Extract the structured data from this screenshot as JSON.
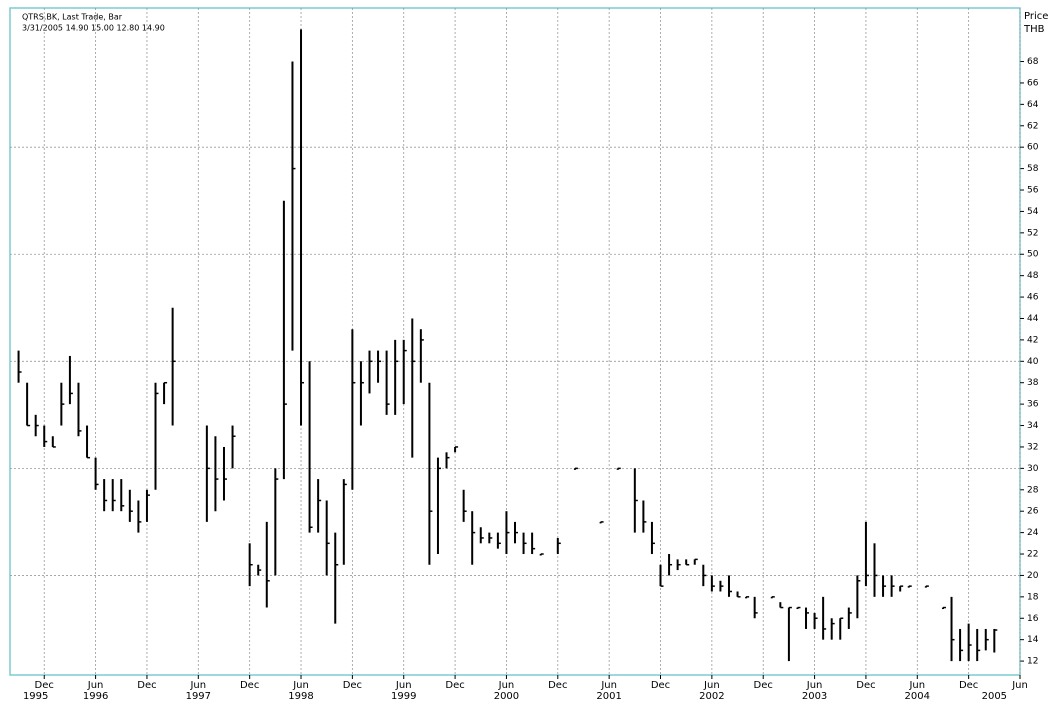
{
  "chart_data": {
    "type": "ohlc",
    "title": "QTRS.BK, Last Trade, Bar",
    "subtitle": "3/31/2005 14.90 15.00 12.80 14.90",
    "y_axis_label": "Price",
    "y_axis_unit": "THB",
    "color": "#000000",
    "grid": true,
    "xlim": [
      "1995-08",
      "2005-06"
    ],
    "ylim": [
      10.7,
      73
    ],
    "yticks": [
      12,
      14,
      16,
      18,
      20,
      22,
      24,
      26,
      28,
      30,
      32,
      34,
      36,
      38,
      40,
      42,
      44,
      46,
      48,
      50,
      52,
      54,
      56,
      58,
      60,
      62,
      64,
      66,
      68
    ],
    "xticks": [
      {
        "value": "1995-12",
        "label": "Dec"
      },
      {
        "value": "1996-06",
        "label": "Jun"
      },
      {
        "value": "1996-12",
        "label": "Dec"
      },
      {
        "value": "1997-06",
        "label": "Jun"
      },
      {
        "value": "1997-12",
        "label": "Dec"
      },
      {
        "value": "1998-06",
        "label": "Jun"
      },
      {
        "value": "1998-12",
        "label": "Dec"
      },
      {
        "value": "1999-06",
        "label": "Jun"
      },
      {
        "value": "1999-12",
        "label": "Dec"
      },
      {
        "value": "2000-06",
        "label": "Jun"
      },
      {
        "value": "2000-12",
        "label": "Dec"
      },
      {
        "value": "2001-06",
        "label": "Jun"
      },
      {
        "value": "2001-12",
        "label": "Dec"
      },
      {
        "value": "2002-06",
        "label": "Jun"
      },
      {
        "value": "2002-12",
        "label": "Dec"
      },
      {
        "value": "2003-06",
        "label": "Jun"
      },
      {
        "value": "2003-12",
        "label": "Dec"
      },
      {
        "value": "2004-06",
        "label": "Jun"
      },
      {
        "value": "2004-12",
        "label": "Dec"
      },
      {
        "value": "2005-06",
        "label": "Jun"
      }
    ],
    "year_labels": [
      {
        "value": "1995-11",
        "label": "1995"
      },
      {
        "value": "1996-06",
        "label": "1996"
      },
      {
        "value": "1997-06",
        "label": "1997"
      },
      {
        "value": "1998-06",
        "label": "1998"
      },
      {
        "value": "1999-06",
        "label": "1999"
      },
      {
        "value": "2000-06",
        "label": "2000"
      },
      {
        "value": "2001-06",
        "label": "2001"
      },
      {
        "value": "2002-06",
        "label": "2002"
      },
      {
        "value": "2003-06",
        "label": "2003"
      },
      {
        "value": "2004-06",
        "label": "2004"
      },
      {
        "value": "2005-03",
        "label": "2005"
      }
    ],
    "x": [
      "1995-09",
      "1995-10",
      "1995-11",
      "1995-12",
      "1996-01",
      "1996-02",
      "1996-03",
      "1996-04",
      "1996-05",
      "1996-06",
      "1996-07",
      "1996-08",
      "1996-09",
      "1996-10",
      "1996-11",
      "1996-12",
      "1997-01",
      "1997-02",
      "1997-03",
      "1997-07",
      "1997-08",
      "1997-09",
      "1997-10",
      "1997-12",
      "1998-01",
      "1998-02",
      "1998-03",
      "1998-04",
      "1998-05",
      "1998-06",
      "1998-07",
      "1998-08",
      "1998-09",
      "1998-10",
      "1998-11",
      "1998-12",
      "1999-01",
      "1999-02",
      "1999-03",
      "1999-04",
      "1999-05",
      "1999-06",
      "1999-07",
      "1999-08",
      "1999-09",
      "1999-10",
      "1999-11",
      "1999-12",
      "2000-01",
      "2000-02",
      "2000-03",
      "2000-04",
      "2000-05",
      "2000-06",
      "2000-07",
      "2000-08",
      "2000-09",
      "2000-10",
      "2000-12",
      "2001-02",
      "2001-05",
      "2001-07",
      "2001-09",
      "2001-10",
      "2001-11",
      "2001-12",
      "2002-01",
      "2002-02",
      "2002-03",
      "2002-04",
      "2002-05",
      "2002-06",
      "2002-07",
      "2002-08",
      "2002-09",
      "2002-10",
      "2002-11",
      "2003-01",
      "2003-02",
      "2003-03",
      "2003-04",
      "2003-05",
      "2003-06",
      "2003-07",
      "2003-08",
      "2003-09",
      "2003-10",
      "2003-11",
      "2003-12",
      "2004-01",
      "2004-02",
      "2004-03",
      "2004-04",
      "2004-05",
      "2004-07",
      "2004-09",
      "2004-10",
      "2004-11",
      "2004-12",
      "2005-01",
      "2005-02",
      "2005-03"
    ],
    "high": [
      41,
      38,
      35,
      34,
      33,
      38,
      40.5,
      38,
      34,
      31,
      29,
      29,
      29,
      28,
      27,
      28,
      38,
      38,
      45,
      34,
      33,
      32,
      34,
      23,
      21,
      25,
      30,
      55,
      68,
      71,
      40,
      29,
      27,
      24,
      29,
      43,
      40,
      41,
      41,
      41,
      42,
      42,
      44,
      43,
      38,
      31,
      31.5,
      32,
      28,
      26,
      24.5,
      24,
      24,
      26,
      25,
      24,
      24,
      22,
      23.5,
      30,
      25,
      30,
      30,
      27,
      25,
      21,
      22,
      21.5,
      21.5,
      21.5,
      21,
      20,
      19.5,
      20,
      18.5,
      18,
      18,
      18,
      17.5,
      17,
      17,
      17,
      16.5,
      18,
      16,
      16,
      17,
      20,
      25,
      23,
      20,
      20,
      19,
      19,
      19,
      17,
      18,
      15,
      15.5,
      15,
      15,
      15
    ],
    "low": [
      38,
      34,
      33,
      32,
      32,
      34,
      36,
      33,
      31,
      28,
      26,
      26,
      26,
      25,
      24,
      25,
      28,
      36,
      34,
      25,
      26,
      27,
      30,
      19,
      20,
      17,
      20,
      29,
      41,
      34,
      24,
      24,
      20,
      15.5,
      21,
      28,
      34,
      37,
      38,
      35,
      35,
      36,
      31,
      38,
      21,
      22,
      30,
      31.5,
      25,
      21,
      23,
      23,
      22.5,
      22,
      23,
      22,
      22,
      22,
      22,
      30,
      25,
      30,
      24,
      24,
      22,
      19,
      20,
      20.5,
      21,
      21,
      19,
      18.5,
      18.5,
      18,
      18,
      18,
      16,
      18,
      17,
      12,
      17,
      15,
      15,
      14,
      14,
      14,
      15,
      16,
      19,
      18,
      18,
      18,
      18.5,
      19,
      19,
      17,
      12,
      12,
      12,
      12,
      13,
      12.8
    ],
    "close": [
      39,
      34,
      34,
      32.5,
      32,
      36,
      37,
      33.5,
      31,
      28.5,
      27,
      27,
      26.5,
      26,
      25,
      27.5,
      37,
      38,
      40,
      30,
      29,
      29,
      33,
      21,
      20.5,
      19.5,
      29,
      36,
      58,
      38,
      24.5,
      27,
      23,
      21,
      28.5,
      38,
      38,
      40,
      40,
      36,
      40,
      41,
      40,
      42,
      26,
      30,
      31,
      32,
      26,
      24,
      23.5,
      23.5,
      23,
      24,
      24,
      23,
      22.5,
      22,
      23,
      30,
      25,
      30,
      27,
      25,
      23,
      19,
      21,
      21,
      21,
      21.5,
      20,
      19,
      19,
      18.5,
      18,
      18,
      16.5,
      18,
      17,
      17,
      17,
      16.5,
      16,
      15,
      15.5,
      16,
      16.5,
      19.5,
      20,
      20,
      19,
      19,
      19,
      19,
      19,
      17,
      14,
      13,
      13.5,
      13,
      14,
      14.9
    ]
  }
}
